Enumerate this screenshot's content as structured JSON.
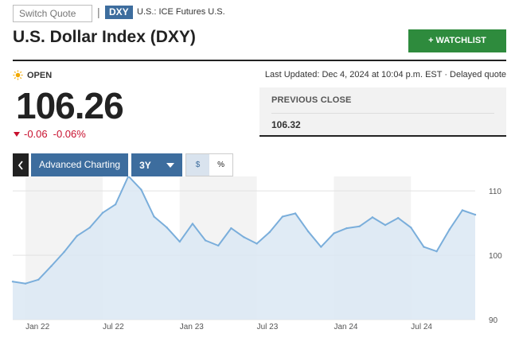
{
  "header": {
    "switch_quote_placeholder": "Switch Quote",
    "separator": "|",
    "symbol": "DXY",
    "exchange": "U.S.: ICE Futures U.S."
  },
  "title": "U.S. Dollar Index (DXY)",
  "watchlist_label": "+ WATCHLIST",
  "market_status": "OPEN",
  "last_updated": "Last Updated: Dec 4, 2024 at 10:04 p.m. EST  ·  Delayed quote",
  "quote": {
    "price": "106.26",
    "change": "-0.06",
    "change_percent": "-0.06%"
  },
  "previous_close": {
    "label": "PREVIOUS CLOSE",
    "value": "106.32"
  },
  "chart_toolbar": {
    "advanced_charting_label": "Advanced Charting",
    "range_label": "3Y",
    "dollar_label": "$",
    "percent_label": "%"
  },
  "colors": {
    "accent_blue": "#3d6d9e",
    "watchlist_green": "#2e8b3d",
    "negative_red": "#c8102e",
    "line_blue": "#7aaedb",
    "area_fill": "#dbe8f3"
  },
  "chart_data": {
    "type": "area",
    "title": "",
    "xlabel": "",
    "ylabel": "",
    "ylim": [
      90,
      112
    ],
    "yticks": [
      "110",
      "100",
      "90"
    ],
    "xticks": [
      {
        "x": "2022-01",
        "label": "Jan 22"
      },
      {
        "x": "2022-07",
        "label": "Jul 22"
      },
      {
        "x": "2023-01",
        "label": "Jan 23"
      },
      {
        "x": "2023-07",
        "label": "Jul 23"
      },
      {
        "x": "2024-01",
        "label": "Jan 24"
      },
      {
        "x": "2024-07",
        "label": "Jul 24"
      }
    ],
    "x_start": "2021-12",
    "x_end": "2024-12",
    "series": [
      {
        "values": [
          [
            "2021-12",
            95.9
          ],
          [
            "2022-01",
            95.6
          ],
          [
            "2022-02",
            96.2
          ],
          [
            "2022-03",
            98.3
          ],
          [
            "2022-04",
            100.5
          ],
          [
            "2022-05",
            103.0
          ],
          [
            "2022-06",
            104.3
          ],
          [
            "2022-07",
            106.6
          ],
          [
            "2022-08",
            107.9
          ],
          [
            "2022-09",
            112.3
          ],
          [
            "2022-10",
            110.2
          ],
          [
            "2022-11",
            106.0
          ],
          [
            "2022-12",
            104.3
          ],
          [
            "2023-01",
            102.1
          ],
          [
            "2023-02",
            104.9
          ],
          [
            "2023-03",
            102.3
          ],
          [
            "2023-04",
            101.5
          ],
          [
            "2023-05",
            104.2
          ],
          [
            "2023-06",
            102.8
          ],
          [
            "2023-07",
            101.8
          ],
          [
            "2023-08",
            103.6
          ],
          [
            "2023-09",
            106.0
          ],
          [
            "2023-10",
            106.5
          ],
          [
            "2023-11",
            103.7
          ],
          [
            "2023-12",
            101.3
          ],
          [
            "2024-01",
            103.4
          ],
          [
            "2024-02",
            104.2
          ],
          [
            "2024-03",
            104.5
          ],
          [
            "2024-04",
            105.9
          ],
          [
            "2024-05",
            104.7
          ],
          [
            "2024-06",
            105.8
          ],
          [
            "2024-07",
            104.3
          ],
          [
            "2024-08",
            101.3
          ],
          [
            "2024-09",
            100.6
          ],
          [
            "2024-10",
            104.0
          ],
          [
            "2024-11",
            107.0
          ],
          [
            "2024-12",
            106.3
          ]
        ]
      }
    ]
  }
}
